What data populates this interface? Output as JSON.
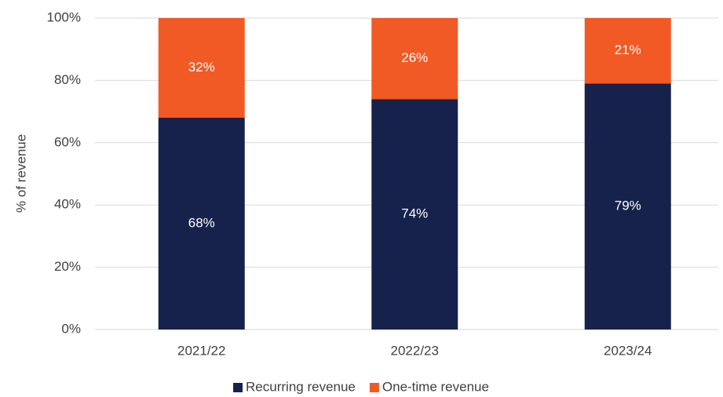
{
  "chart_data": {
    "type": "stacked_bar",
    "y_label": "% of revenue",
    "categories": [
      "2021/22",
      "2022/23",
      "2023/24"
    ],
    "series": [
      {
        "name": "Recurring revenue",
        "color": "#16224b",
        "values": [
          68,
          74,
          79
        ],
        "value_labels": [
          "68%",
          "74%",
          "79%"
        ]
      },
      {
        "name": "One-time revenue",
        "color": "#f15a25",
        "values": [
          32,
          26,
          21
        ],
        "value_labels": [
          "32%",
          "26%",
          "21%"
        ]
      }
    ],
    "ylim": [
      0,
      100
    ],
    "yticks": [
      {
        "value": 0,
        "label": "0%"
      },
      {
        "value": 20,
        "label": "20%"
      },
      {
        "value": 40,
        "label": "40%"
      },
      {
        "value": 60,
        "label": "60%"
      },
      {
        "value": 80,
        "label": "80%"
      },
      {
        "value": 100,
        "label": "100%"
      }
    ],
    "grid": true,
    "legend": "bottom"
  }
}
